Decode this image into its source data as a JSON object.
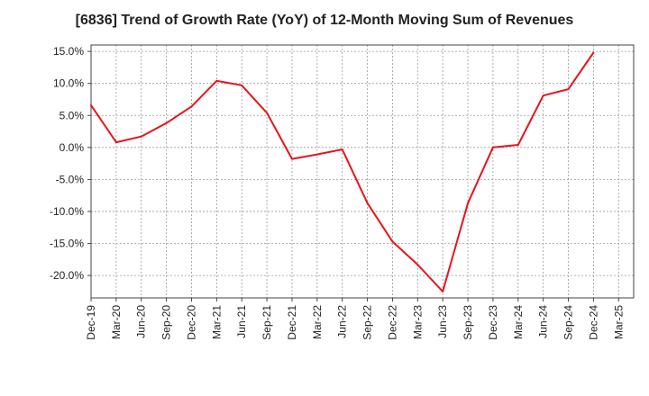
{
  "chart_data": {
    "type": "line",
    "title": "[6836]  Trend of Growth Rate (YoY) of 12-Month Moving Sum of Revenues",
    "x_ticks": [
      "Dec-19",
      "Mar-20",
      "Jun-20",
      "Sep-20",
      "Dec-20",
      "Mar-21",
      "Jun-21",
      "Sep-21",
      "Dec-21",
      "Mar-22",
      "Jun-22",
      "Sep-22",
      "Dec-22",
      "Mar-23",
      "Jun-23",
      "Sep-23",
      "Dec-23",
      "Mar-24",
      "Jun-24",
      "Sep-24",
      "Dec-24",
      "Mar-25"
    ],
    "y_ticks": [
      15.0,
      10.0,
      5.0,
      0.0,
      -5.0,
      -10.0,
      -15.0,
      -20.0
    ],
    "y_tick_labels": [
      "15.0%",
      "10.0%",
      "5.0%",
      "0.0%",
      "-5.0%",
      "-10.0%",
      "-15.0%",
      "-20.0%"
    ],
    "ylim": [
      -23.5,
      16.0
    ],
    "grid": true,
    "series": [
      {
        "color": "#e8141b",
        "x": [
          "Dec-19",
          "Mar-20",
          "Jun-20",
          "Sep-20",
          "Dec-20",
          "Mar-21",
          "Jun-21",
          "Sep-21",
          "Dec-21",
          "Mar-22",
          "Jun-22",
          "Sep-22",
          "Dec-22",
          "Mar-23",
          "Jun-23",
          "Sep-23",
          "Dec-23",
          "Mar-24",
          "Jun-24",
          "Sep-24",
          "Dec-24"
        ],
        "values": [
          6.6,
          0.8,
          1.7,
          3.8,
          6.4,
          10.4,
          9.7,
          5.4,
          -1.8,
          -1.1,
          -0.3,
          -8.7,
          -14.7,
          -18.3,
          -22.5,
          -8.7,
          0.0,
          0.4,
          8.1,
          9.1,
          14.8
        ]
      }
    ]
  }
}
